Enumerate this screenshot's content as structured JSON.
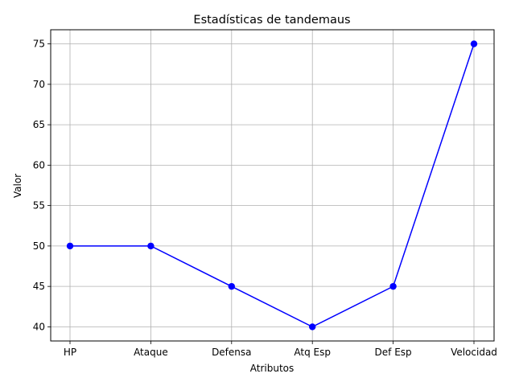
{
  "chart_data": {
    "type": "line",
    "title": "Estadísticas de tandemaus",
    "xlabel": "Atributos",
    "ylabel": "Valor",
    "categories": [
      "HP",
      "Ataque",
      "Defensa",
      "Atq Esp",
      "Def Esp",
      "Velocidad"
    ],
    "series": [
      {
        "values": [
          50,
          50,
          45,
          40,
          45,
          75
        ],
        "color": "#0000ff",
        "marker": "circle"
      }
    ],
    "ylim": [
      38.25,
      76.75
    ],
    "yticks": [
      40,
      45,
      50,
      55,
      60,
      65,
      70,
      75
    ],
    "grid": true,
    "legend": "none"
  }
}
